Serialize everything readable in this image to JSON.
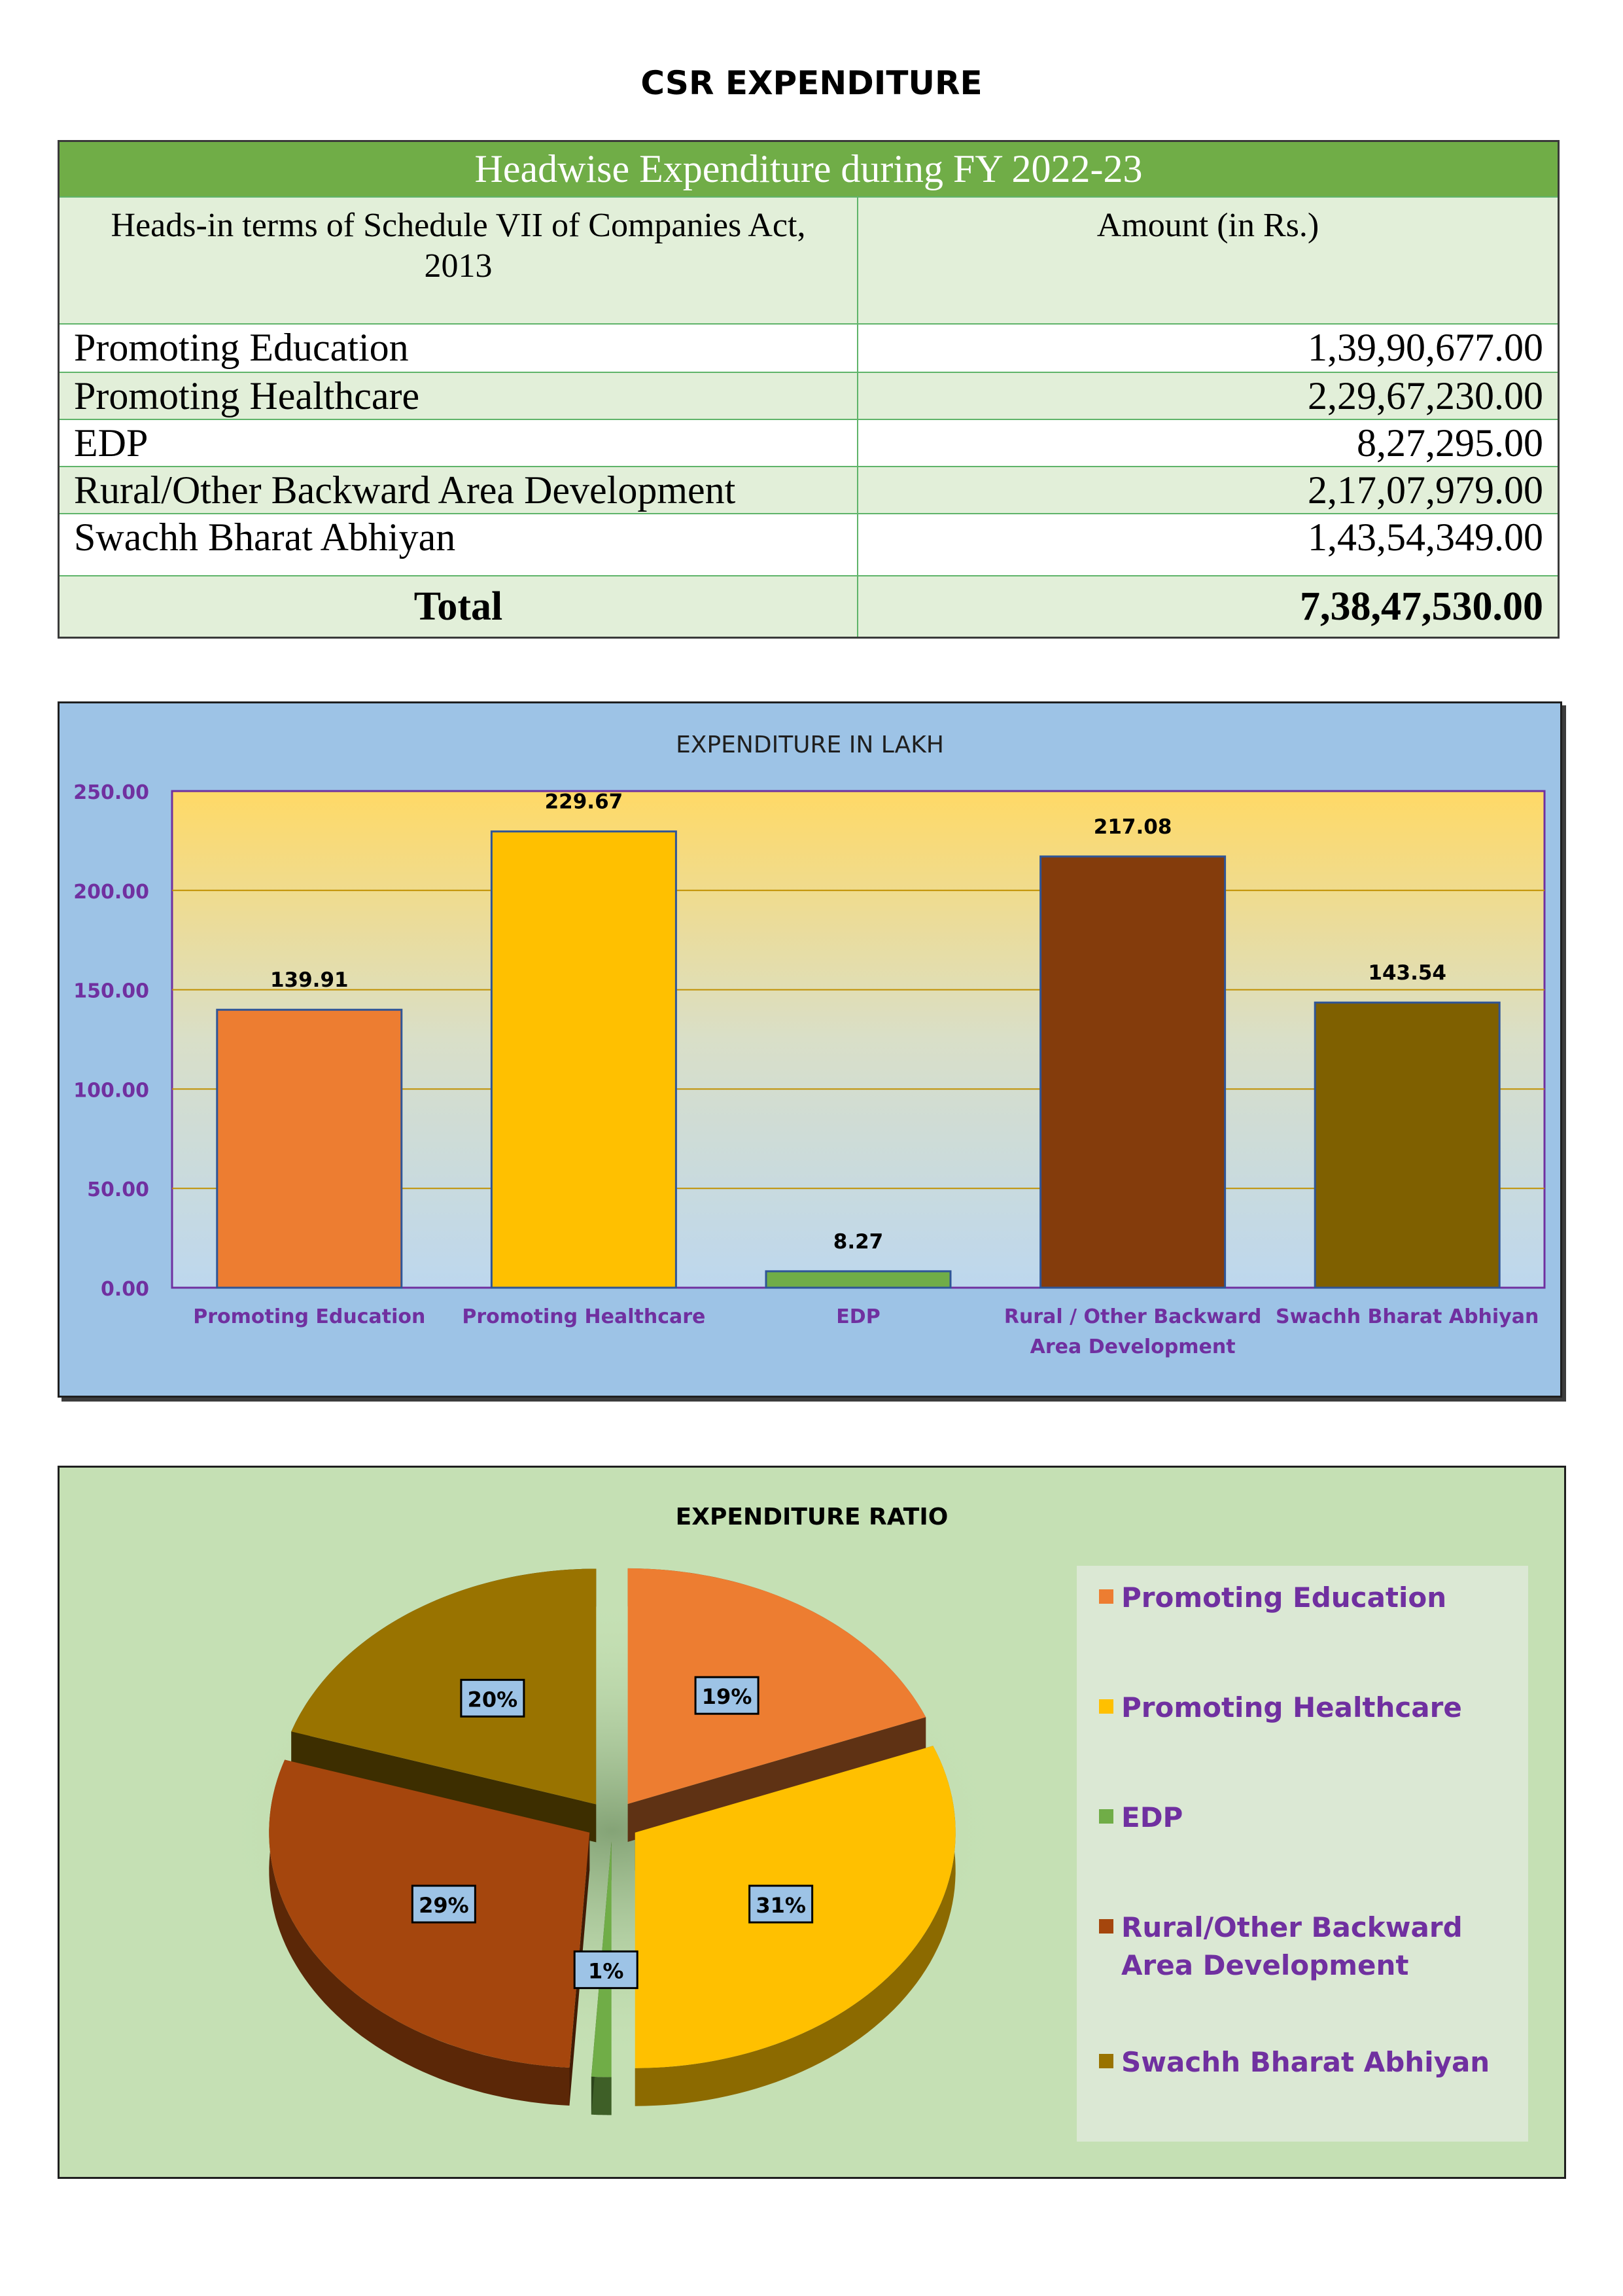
{
  "page": {
    "title": "CSR EXPENDITURE"
  },
  "table": {
    "band_title": "Headwise Expenditure during FY 2022-23",
    "col_heads": [
      "Heads-in terms of Schedule VII of Companies Act, 2013",
      "Amount (in Rs.)"
    ],
    "rows": [
      {
        "head": "Promoting Education",
        "amount": "1,39,90,677.00"
      },
      {
        "head": "Promoting Healthcare",
        "amount": "2,29,67,230.00"
      },
      {
        "head": "EDP",
        "amount": "8,27,295.00"
      },
      {
        "head": "Rural/Other Backward Area Development",
        "amount": "2,17,07,979.00"
      },
      {
        "head": "Swachh Bharat Abhiyan",
        "amount": "1,43,54,349.00"
      }
    ],
    "total_label": "Total",
    "total_amount": "7,38,47,530.00"
  },
  "chart_data": [
    {
      "type": "bar",
      "title": "EXPENDITURE IN LAKH",
      "categories": [
        "Promoting Education",
        "Promoting Healthcare",
        "EDP",
        "Rural / Other Backward Area Development",
        "Swachh Bharat Abhiyan"
      ],
      "category_lines": [
        [
          "Promoting Education"
        ],
        [
          "Promoting Healthcare"
        ],
        [
          "EDP"
        ],
        [
          "Rural / Other Backward",
          "Area Development"
        ],
        [
          "Swachh Bharat Abhiyan"
        ]
      ],
      "values": [
        139.91,
        229.67,
        8.27,
        217.08,
        143.54
      ],
      "value_labels": [
        "139.91",
        "229.67",
        "8.27",
        "217.08",
        "143.54"
      ],
      "colors": [
        "#ed7d31",
        "#ffc000",
        "#70ad47",
        "#843c0c",
        "#7f6000"
      ],
      "ylim": [
        0,
        250
      ],
      "yticks": [
        0,
        50,
        100,
        150,
        200,
        250
      ],
      "ytick_labels": [
        "0.00",
        "50.00",
        "100.00",
        "150.00",
        "200.00",
        "250.00"
      ],
      "xlabel": "",
      "ylabel": "",
      "grid": true
    },
    {
      "type": "pie",
      "title": "EXPENDITURE RATIO",
      "labels": [
        "Promoting Education",
        "Promoting Healthcare",
        "EDP",
        "Rural/Other Backward Area Development",
        "Swachh Bharat Abhiyan"
      ],
      "values": [
        19,
        31,
        1,
        29,
        20
      ],
      "value_labels": [
        "19%",
        "31%",
        "1%",
        "29%",
        "20%"
      ],
      "colors": [
        "#ed7d31",
        "#ffc000",
        "#70ad47",
        "#a5460d",
        "#997300"
      ],
      "legend_position": "right"
    }
  ]
}
